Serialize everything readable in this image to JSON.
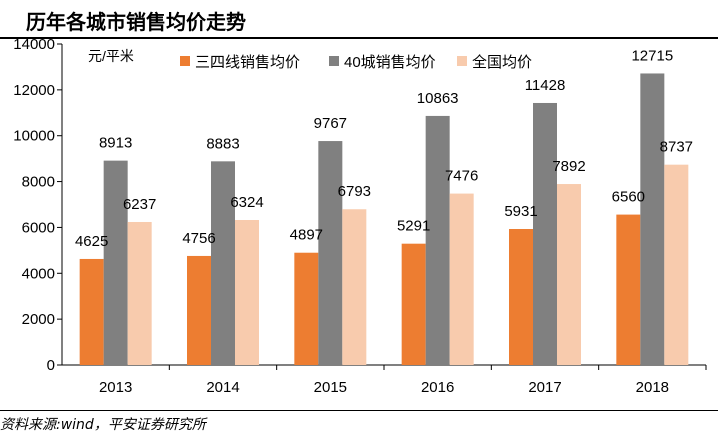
{
  "title": "历年各城市销售均价走势",
  "source": "资料来源:wind，平安证券研究所",
  "chart_data": {
    "type": "bar",
    "unit_label": "元/平米",
    "categories": [
      "2013",
      "2014",
      "2015",
      "2016",
      "2017",
      "2018"
    ],
    "series": [
      {
        "name": "三四线销售均价",
        "color": "#ED7D31",
        "values": [
          4625,
          4756,
          4897,
          5291,
          5931,
          6560
        ]
      },
      {
        "name": "40城销售均价",
        "color": "#808080",
        "values": [
          8913,
          8883,
          9767,
          10863,
          11428,
          12715
        ]
      },
      {
        "name": "全国均价",
        "color": "#F8CBAD",
        "values": [
          6237,
          6324,
          6793,
          7476,
          7892,
          8737
        ]
      }
    ],
    "ylim": [
      0,
      14000
    ],
    "yticks": [
      0,
      2000,
      4000,
      6000,
      8000,
      10000,
      12000,
      14000
    ],
    "grid": false,
    "legend_position": "top"
  }
}
